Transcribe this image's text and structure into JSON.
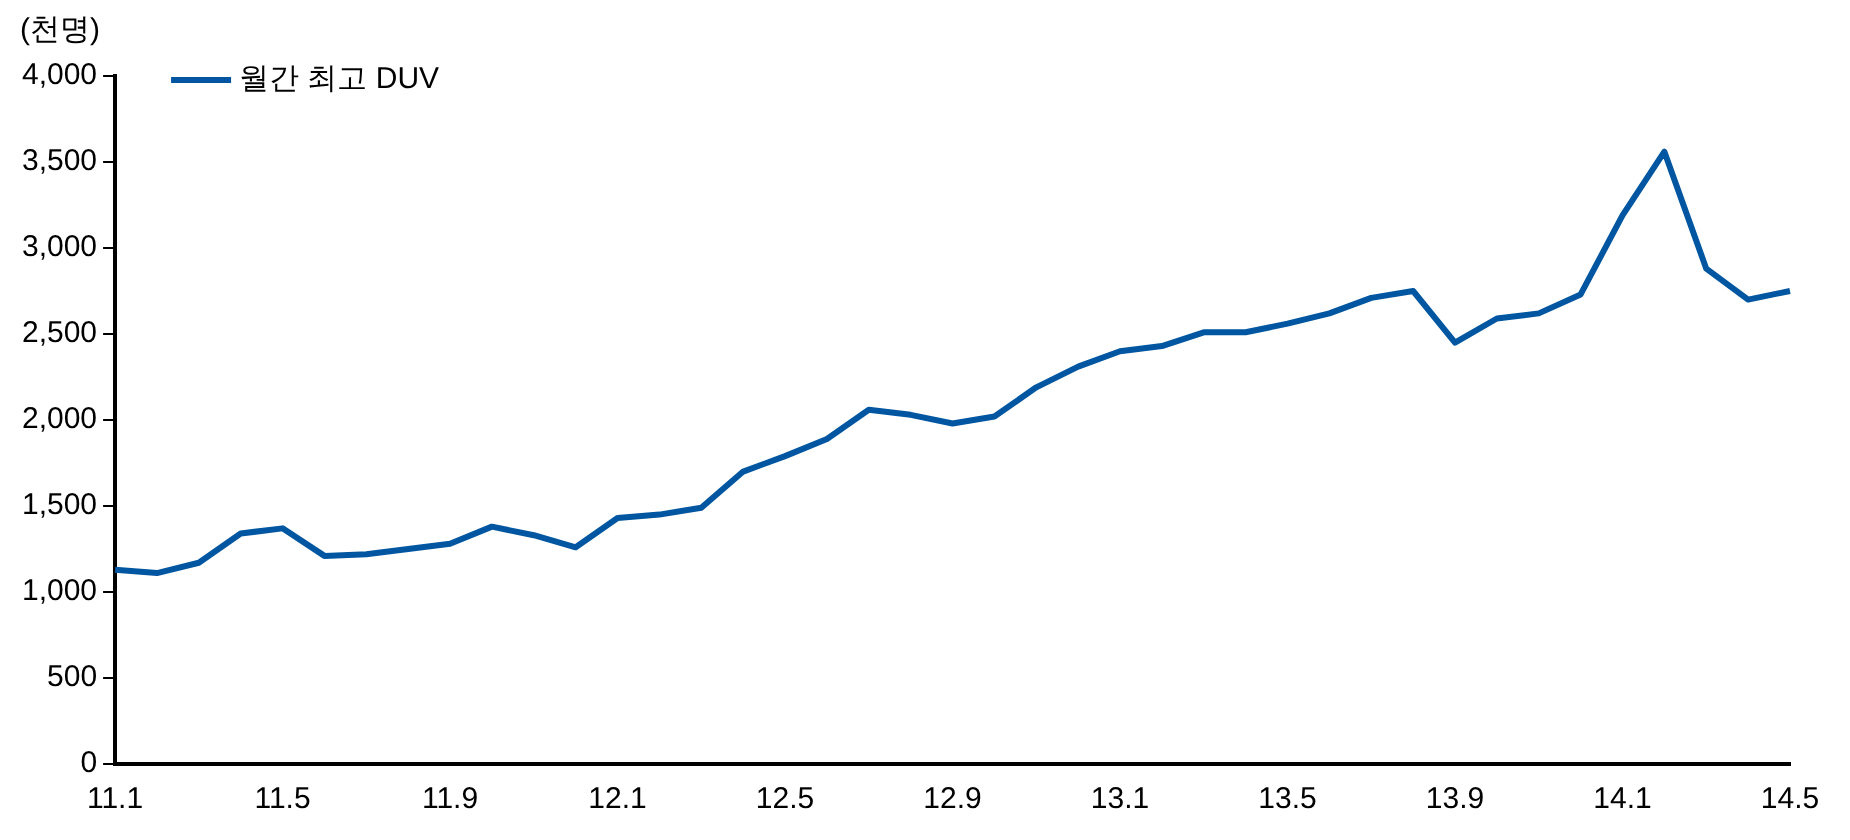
{
  "chart_data": {
    "type": "line",
    "ylabel": "(천명)",
    "categories": [
      "11.1",
      null,
      null,
      null,
      "11.5",
      null,
      null,
      null,
      "11.9",
      null,
      null,
      null,
      "12.1",
      null,
      null,
      null,
      "12.5",
      null,
      null,
      null,
      "12.9",
      null,
      null,
      null,
      "13.1",
      null,
      null,
      null,
      "13.5",
      null,
      null,
      null,
      "13.9",
      null,
      null,
      null,
      "14.1",
      null,
      null,
      null,
      "14.5"
    ],
    "series": [
      {
        "name": "월간 최고 DUV",
        "color": "#0056a0",
        "values": [
          1130,
          1110,
          1170,
          1340,
          1370,
          1210,
          1220,
          1250,
          1280,
          1380,
          1330,
          1260,
          1430,
          1450,
          1490,
          1700,
          1790,
          1890,
          2060,
          2030,
          1980,
          2020,
          2190,
          2310,
          2400,
          2430,
          2510,
          2510,
          2560,
          2620,
          2710,
          2750,
          2450,
          2590,
          2620,
          2730,
          3190,
          3560,
          2880,
          2700,
          2750
        ]
      }
    ],
    "ylim": [
      0,
      4000
    ],
    "yticks": [
      0,
      500,
      {
        "value": 1000,
        "label": "1,000"
      },
      {
        "value": 1500,
        "label": "1,500"
      },
      {
        "value": 2000,
        "label": "2,000"
      },
      {
        "value": 2500,
        "label": "2,500"
      },
      {
        "value": 3000,
        "label": "3,000"
      },
      {
        "value": 3500,
        "label": "3,500"
      },
      {
        "value": 4000,
        "label": "4,000"
      }
    ],
    "grid": false,
    "legend": "top left",
    "marker": "none",
    "line_style": "solid"
  }
}
